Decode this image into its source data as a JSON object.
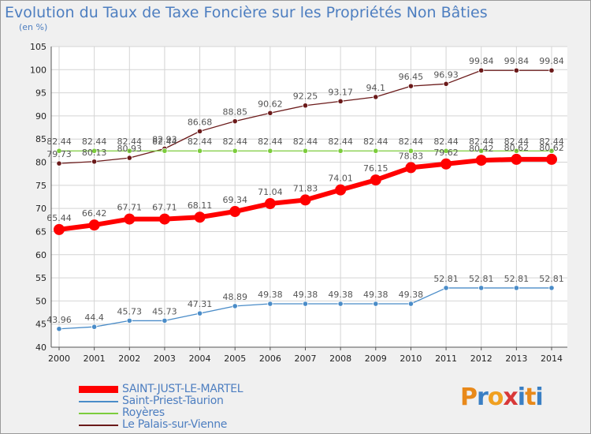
{
  "title": "Evolution du Taux de Taxe Foncière sur les Propriétés Non Bâties",
  "subtitle": "(en %)",
  "logo": {
    "text": [
      "P",
      "r",
      "o",
      "x",
      "i",
      "t",
      "i"
    ],
    "colors": [
      "#e8891a",
      "#3a7fc4",
      "#f0a020",
      "#d83838",
      "#3a7fc4",
      "#e8891a",
      "#3a7fc4"
    ]
  },
  "chart_data": {
    "type": "line",
    "x": [
      "2000",
      "2001",
      "2002",
      "2003",
      "2004",
      "2005",
      "2006",
      "2007",
      "2008",
      "2009",
      "2010",
      "2011",
      "2012",
      "2013",
      "2014"
    ],
    "yticks": [
      "40",
      "45",
      "50",
      "55",
      "60",
      "65",
      "70",
      "75",
      "80",
      "85",
      "90",
      "95",
      "100",
      "105"
    ],
    "ylim": [
      40,
      105
    ],
    "grid": true,
    "legend_position": "bottom-left",
    "series": [
      {
        "name": "Le Palais-sur-Vienne",
        "color": "#6b1a1a",
        "width": 1.3,
        "dot": 3.2,
        "values": [
          79.73,
          80.13,
          80.93,
          82.93,
          86.68,
          88.85,
          90.62,
          92.25,
          93.17,
          94.1,
          96.45,
          96.93,
          99.84,
          99.84,
          99.84
        ],
        "labels": [
          "79.73",
          "80.13",
          "80.93",
          "82.93",
          "86.68",
          "88.85",
          "90.62",
          "92.25",
          "93.17",
          "94.1",
          "96.45",
          "96.93",
          "99.84",
          "99.84",
          "99.84"
        ]
      },
      {
        "name": "Royères",
        "color": "#7ccc3c",
        "width": 1.3,
        "dot": 3.2,
        "values": [
          82.44,
          82.44,
          82.44,
          82.44,
          82.44,
          82.44,
          82.44,
          82.44,
          82.44,
          82.44,
          82.44,
          82.44,
          82.44,
          82.44,
          82.44
        ],
        "labels": [
          "82.44",
          "82.44",
          "82.44",
          "82.44",
          "82.44",
          "82.44",
          "82.44",
          "82.44",
          "82.44",
          "82.44",
          "82.44",
          "82.44",
          "82.44",
          "82.44",
          "82.44"
        ]
      },
      {
        "name": "Saint-Priest-Taurion",
        "color": "#4a8cc8",
        "width": 1.3,
        "dot": 3.2,
        "values": [
          43.96,
          44.4,
          45.73,
          45.73,
          47.31,
          48.89,
          49.38,
          49.38,
          49.38,
          49.38,
          49.38,
          52.81,
          52.81,
          52.81,
          52.81
        ],
        "labels": [
          "43.96",
          "44.4",
          "45.73",
          "45.73",
          "47.31",
          "48.89",
          "49.38",
          "49.38",
          "49.38",
          "49.38",
          "49.38",
          "52.81",
          "52.81",
          "52.81",
          "52.81"
        ]
      },
      {
        "name": "SAINT-JUST-LE-MARTEL",
        "color": "#ff0000",
        "width": 6,
        "dot": 7,
        "values": [
          65.44,
          66.42,
          67.71,
          67.71,
          68.11,
          69.34,
          71.04,
          71.83,
          74.01,
          76.15,
          78.83,
          79.62,
          80.42,
          80.62,
          80.62
        ],
        "labels": [
          "65.44",
          "66.42",
          "67.71",
          "67.71",
          "68.11",
          "69.34",
          "71.04",
          "71.83",
          "74.01",
          "76.15",
          "78.83",
          "79.62",
          "80.42",
          "80.62",
          "80.62"
        ]
      }
    ],
    "legend": [
      "SAINT-JUST-LE-MARTEL",
      "Saint-Priest-Taurion",
      "Royères",
      "Le Palais-sur-Vienne"
    ]
  }
}
